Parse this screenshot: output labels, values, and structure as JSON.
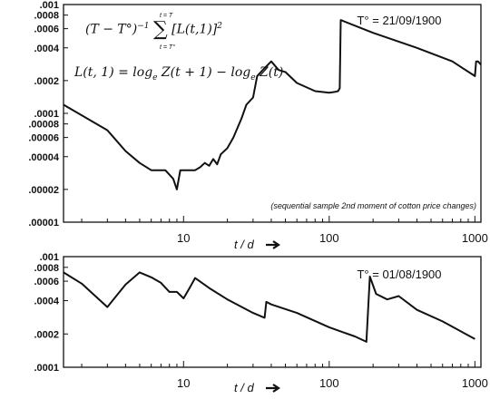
{
  "chart_data": [
    {
      "type": "line",
      "title": "",
      "xlabel": "t / d",
      "ylabel": "",
      "x_scale": "log",
      "y_scale": "log",
      "xlim": [
        1.5,
        1100
      ],
      "ylim": [
        1e-05,
        0.001
      ],
      "x_ticks": [
        10,
        100,
        1000
      ],
      "x_tick_labels": [
        "10",
        "100",
        "1000"
      ],
      "y_ticks": [
        0.001,
        0.0008,
        0.0006,
        0.0004,
        0.0002,
        0.0001,
        8e-05,
        6e-05,
        4e-05,
        2e-05,
        1e-05
      ],
      "y_tick_labels": [
        ".001",
        ".0008",
        ".0006",
        ".0004",
        ".0002",
        ".0001",
        ".00008",
        ".00006",
        ".00004",
        ".00002",
        ".00001"
      ],
      "annotation": "T° = 21/09/1900",
      "note": "(sequential sample 2nd moment of cotton price changes)",
      "formula": {
        "line1_lead": "(T − T°)",
        "line1_exp": "−1",
        "sum_upper": "t = T",
        "sum_lower": "t = T°",
        "line1_term": "[L(t,1)]",
        "line1_power": "2",
        "line2": "L(t, 1) = log",
        "line2_mid": " Z(t + 1) − log",
        "line2_end": " Z(t)",
        "log_base": "e"
      },
      "grid": false,
      "series": [
        {
          "x": [
            1.5,
            3,
            4,
            5,
            6,
            7.5,
            8.5,
            9,
            9.5,
            12,
            13,
            14,
            15,
            16,
            17,
            18,
            20,
            22,
            25,
            27,
            30,
            32,
            35,
            40,
            45,
            50,
            60,
            80,
            100,
            110,
            115,
            118,
            120,
            200,
            400,
            700,
            1000,
            1020,
            1050,
            1100
          ],
          "y": [
            0.00012,
            7e-05,
            4.5e-05,
            3.5e-05,
            3e-05,
            3e-05,
            2.5e-05,
            2e-05,
            3e-05,
            3e-05,
            3.2e-05,
            3.5e-05,
            3.3e-05,
            3.8e-05,
            3.4e-05,
            4.2e-05,
            4.8e-05,
            6e-05,
            9e-05,
            0.00012,
            0.00014,
            0.00022,
            0.00025,
            0.0003,
            0.00025,
            0.00024,
            0.00019,
            0.00016,
            0.000155,
            0.000158,
            0.00016,
            0.00017,
            0.00072,
            0.00055,
            0.0004,
            0.0003,
            0.00022,
            0.0003,
            0.0003,
            0.00028
          ]
        }
      ]
    },
    {
      "type": "line",
      "title": "",
      "xlabel": "t / d",
      "ylabel": "",
      "x_scale": "log",
      "y_scale": "log",
      "xlim": [
        1.5,
        1100
      ],
      "ylim": [
        0.0001,
        0.001
      ],
      "x_ticks": [
        10,
        100,
        1000
      ],
      "x_tick_labels": [
        "10",
        "100",
        "1000"
      ],
      "y_ticks": [
        0.001,
        0.0008,
        0.0006,
        0.0004,
        0.0002,
        0.0001
      ],
      "y_tick_labels": [
        ".001",
        ".0008",
        ".0006",
        ".0004",
        ".0002",
        ".0001"
      ],
      "annotation": "T° = 01/08/1900",
      "grid": false,
      "series": [
        {
          "x": [
            1.5,
            2,
            3,
            4,
            5,
            6,
            7,
            8,
            9,
            10,
            11,
            12,
            15,
            20,
            30,
            36,
            37,
            40,
            60,
            100,
            150,
            180,
            190,
            210,
            250,
            300,
            400,
            600,
            1000
          ],
          "y": [
            0.00072,
            0.00057,
            0.00035,
            0.00056,
            0.00072,
            0.00065,
            0.00058,
            0.00048,
            0.00048,
            0.00042,
            0.00052,
            0.00064,
            0.00052,
            0.00041,
            0.00031,
            0.00028,
            0.00039,
            0.00037,
            0.00031,
            0.00023,
            0.00019,
            0.00017,
            0.00066,
            0.00046,
            0.00041,
            0.00044,
            0.00033,
            0.00026,
            0.00018
          ]
        }
      ]
    }
  ]
}
